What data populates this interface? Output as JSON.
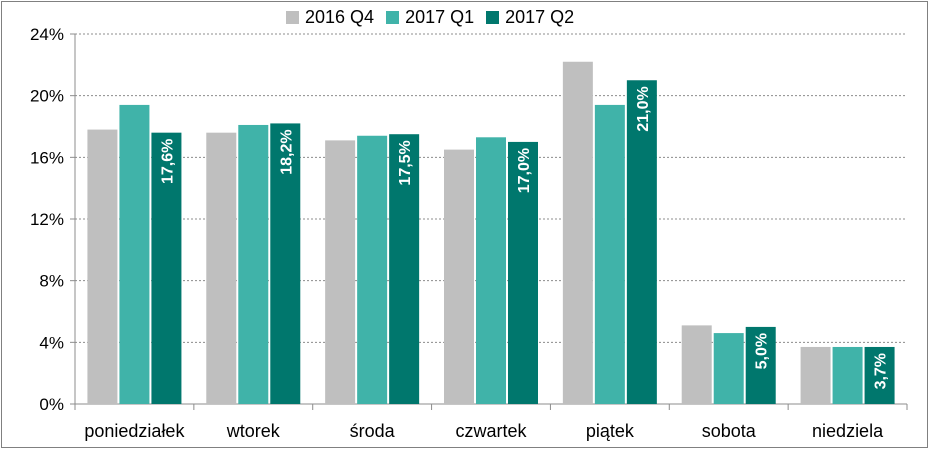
{
  "chart_data": {
    "type": "bar",
    "categories": [
      "poniedziałek",
      "wtorek",
      "środa",
      "czwartek",
      "piątek",
      "sobota",
      "niedziela"
    ],
    "series": [
      {
        "name": "2016 Q4",
        "color": "#BFBFBF",
        "values": [
          17.8,
          17.6,
          17.1,
          16.5,
          22.2,
          5.1,
          3.7
        ]
      },
      {
        "name": "2017 Q1",
        "color": "#40B3A9",
        "values": [
          19.4,
          18.1,
          17.4,
          17.3,
          19.4,
          4.6,
          3.7
        ]
      },
      {
        "name": "2017 Q2",
        "color": "#00776D",
        "values": [
          17.6,
          18.2,
          17.5,
          17.0,
          21.0,
          5.0,
          3.7
        ],
        "labels": [
          "17,6%",
          "18,2%",
          "17,5%",
          "17,0%",
          "21,0%",
          "5,0%",
          "3,7%"
        ]
      }
    ],
    "yticks": [
      0,
      4,
      8,
      12,
      16,
      20,
      24
    ],
    "ytick_labels": [
      "0%",
      "4%",
      "8%",
      "12%",
      "16%",
      "20%",
      "24%"
    ],
    "ylim": [
      0,
      24
    ],
    "grid": true,
    "legend": "top-center",
    "title": "",
    "xlabel": "",
    "ylabel": ""
  }
}
